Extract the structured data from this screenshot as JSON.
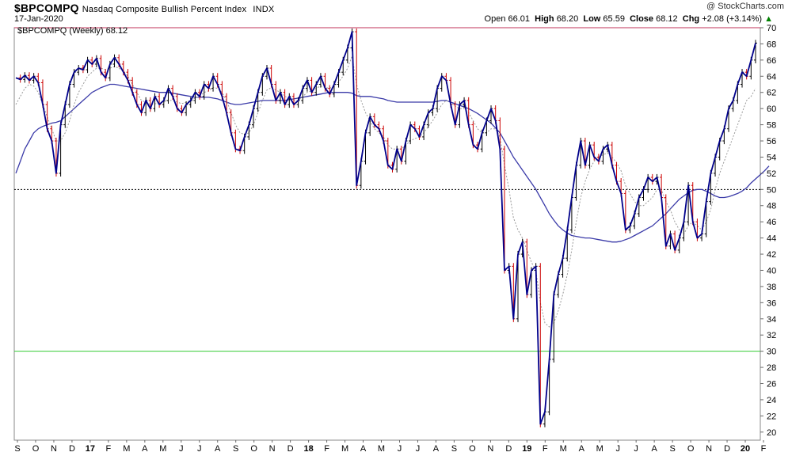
{
  "header": {
    "symbol": "$BPCOMPQ",
    "description": "Nasdaq Composite Bullish Percent Index",
    "exchange": "INDX",
    "date": "17-Jan-2020",
    "watermark": "@ StockCharts.com",
    "open_label": "Open",
    "open": "66.01",
    "high_label": "High",
    "high": "68.20",
    "low_label": "Low",
    "low": "65.59",
    "close_label": "Close",
    "close": "68.12",
    "chg_label": "Chg",
    "chg": "+2.08 (+3.14%)",
    "chg_arrow": "▲"
  },
  "legend": {
    "label": "$BPCOMPQ (Weekly) 68.12"
  },
  "colors": {
    "price_line": "#00008b",
    "up_bar": "#000000",
    "down_bar": "#cc0000",
    "ma_long": "#3a3aa8",
    "ma_short": "#9a9a9a",
    "ref_top": "#c0335a",
    "ref_mid": "#000000",
    "ref_low": "#33cc33"
  },
  "chart_data": {
    "type": "line",
    "ylim": [
      19,
      70
    ],
    "y_ticks": [
      20,
      22,
      24,
      26,
      28,
      30,
      32,
      34,
      36,
      38,
      40,
      42,
      44,
      46,
      48,
      50,
      52,
      54,
      56,
      58,
      60,
      62,
      64,
      66,
      68,
      70
    ],
    "x_labels": [
      "S",
      "O",
      "N",
      "D",
      "17",
      "F",
      "M",
      "A",
      "M",
      "J",
      "J",
      "A",
      "S",
      "O",
      "N",
      "D",
      "18",
      "F",
      "M",
      "A",
      "M",
      "J",
      "J",
      "A",
      "S",
      "O",
      "N",
      "D",
      "19",
      "F",
      "M",
      "A",
      "M",
      "J",
      "J",
      "A",
      "S",
      "O",
      "N",
      "D",
      "20",
      "F"
    ],
    "reference_lines": [
      70,
      50,
      30
    ],
    "series": [
      {
        "values": [
          63.8,
          63.6,
          64.1,
          63.5,
          64.0,
          63.2,
          60.5,
          57.5,
          56.0,
          52.0,
          58.0,
          60.5,
          63.0,
          64.5,
          65.0,
          64.8,
          66.0,
          65.5,
          66.2,
          64.5,
          63.8,
          65.5,
          66.3,
          65.5,
          64.5,
          63.5,
          62.0,
          60.5,
          59.5,
          61.0,
          60.0,
          61.5,
          60.5,
          61.0,
          62.5,
          61.5,
          60.0,
          59.5,
          60.5,
          61.0,
          62.0,
          61.5,
          63.0,
          62.5,
          64.0,
          63.0,
          61.5,
          59.5,
          57.0,
          55.0,
          54.8,
          56.5,
          58.0,
          60.0,
          62.0,
          64.0,
          65.0,
          63.0,
          61.0,
          62.0,
          60.5,
          61.5,
          60.5,
          61.0,
          62.5,
          63.5,
          62.0,
          63.0,
          64.0,
          62.5,
          61.8,
          63.0,
          64.5,
          66.0,
          67.5,
          69.5,
          50.5,
          53.5,
          57.0,
          59.0,
          58.0,
          57.5,
          56.0,
          53.0,
          52.5,
          55.0,
          53.5,
          56.0,
          58.0,
          57.5,
          56.5,
          58.0,
          59.5,
          60.0,
          62.5,
          64.0,
          63.5,
          60.5,
          58.0,
          60.5,
          61.0,
          58.0,
          55.5,
          55.0,
          57.0,
          58.5,
          60.0,
          58.5,
          55.0,
          40.0,
          40.5,
          34.0,
          42.0,
          43.5,
          37.0,
          40.0,
          40.5,
          21.0,
          22.5,
          29.0,
          37.0,
          39.5,
          41.5,
          45.0,
          49.0,
          53.0,
          56.0,
          53.0,
          55.5,
          54.0,
          53.5,
          55.0,
          55.5,
          53.0,
          51.0,
          49.5,
          45.0,
          45.5,
          47.0,
          49.0,
          50.0,
          51.5,
          51.0,
          51.5,
          49.0,
          43.0,
          44.5,
          42.5,
          44.0,
          46.0,
          50.5,
          46.0,
          44.0,
          44.5,
          48.5,
          52.0,
          54.0,
          56.0,
          57.5,
          60.0,
          61.0,
          63.0,
          64.5,
          64.0,
          66.0,
          68.1
        ]
      },
      {
        "values": [
          52.0,
          53.5,
          55.0,
          56.0,
          57.0,
          57.5,
          57.8,
          58.0,
          58.2,
          58.3,
          58.5,
          59.0,
          59.5,
          60.0,
          60.5,
          61.0,
          61.5,
          62.0,
          62.3,
          62.6,
          62.8,
          63.0,
          63.0,
          62.9,
          62.8,
          62.7,
          62.6,
          62.5,
          62.4,
          62.3,
          62.2,
          62.1,
          62.0,
          62.0,
          62.0,
          61.9,
          61.8,
          61.7,
          61.6,
          61.5,
          61.4,
          61.4,
          61.4,
          61.4,
          61.3,
          61.2,
          61.0,
          60.8,
          60.6,
          60.5,
          60.5,
          60.6,
          60.7,
          60.8,
          60.9,
          61.0,
          61.0,
          61.0,
          61.0,
          61.0,
          61.0,
          61.1,
          61.2,
          61.3,
          61.4,
          61.5,
          61.6,
          61.7,
          61.8,
          61.9,
          62.0,
          62.0,
          62.0,
          62.0,
          62.0,
          61.9,
          61.6,
          61.5,
          61.5,
          61.5,
          61.4,
          61.3,
          61.2,
          61.0,
          60.9,
          60.8,
          60.8,
          60.8,
          60.8,
          60.8,
          60.8,
          60.8,
          60.8,
          60.8,
          60.9,
          61.0,
          61.0,
          60.8,
          60.6,
          60.4,
          60.2,
          60.0,
          59.7,
          59.4,
          59.0,
          58.6,
          58.2,
          57.6,
          57.0,
          56.0,
          55.0,
          54.0,
          53.2,
          52.4,
          51.6,
          50.8,
          50.0,
          49.0,
          48.0,
          47.0,
          46.2,
          45.5,
          45.0,
          44.6,
          44.3,
          44.2,
          44.1,
          44.0,
          44.0,
          43.9,
          43.8,
          43.7,
          43.6,
          43.5,
          43.5,
          43.6,
          43.8,
          44.0,
          44.3,
          44.6,
          44.9,
          45.2,
          45.5,
          46.0,
          46.5,
          47.0,
          47.6,
          48.2,
          48.8,
          49.2,
          49.6,
          49.9,
          50.0,
          50.0,
          49.8,
          49.5,
          49.2,
          49.0,
          49.0,
          49.1,
          49.3,
          49.5,
          49.8,
          50.2,
          50.8,
          51.3,
          51.8,
          52.3,
          52.9
        ]
      },
      {
        "values": [
          60.5,
          61.5,
          62.5,
          63.0,
          62.8,
          62.0,
          60.5,
          59.0,
          57.5,
          56.0,
          56.0,
          57.0,
          58.5,
          60.5,
          62.0,
          63.0,
          64.0,
          64.5,
          65.0,
          65.0,
          64.8,
          65.0,
          65.2,
          65.0,
          64.6,
          64.0,
          63.0,
          62.0,
          61.0,
          60.8,
          60.5,
          60.6,
          60.6,
          60.8,
          61.0,
          61.0,
          60.8,
          60.6,
          60.8,
          61.0,
          61.3,
          61.5,
          62.0,
          62.2,
          62.6,
          62.5,
          62.0,
          61.0,
          59.5,
          58.0,
          57.0,
          56.8,
          57.0,
          58.0,
          59.5,
          61.0,
          62.3,
          62.6,
          62.3,
          62.0,
          61.5,
          61.3,
          61.0,
          61.0,
          61.5,
          62.0,
          62.2,
          62.5,
          62.8,
          62.6,
          62.5,
          62.8,
          63.3,
          64.0,
          65.0,
          66.5,
          63.0,
          61.0,
          59.5,
          58.5,
          57.5,
          57.0,
          56.5,
          55.5,
          55.0,
          55.0,
          55.0,
          55.5,
          56.0,
          56.3,
          56.5,
          57.0,
          57.8,
          58.5,
          59.5,
          60.5,
          61.0,
          60.8,
          60.3,
          60.0,
          60.0,
          59.5,
          58.5,
          57.5,
          57.0,
          57.0,
          57.5,
          57.5,
          56.5,
          53.0,
          50.0,
          46.5,
          45.0,
          44.0,
          42.5,
          41.0,
          40.0,
          36.0,
          33.5,
          33.0,
          33.5,
          35.0,
          37.0,
          39.5,
          42.5,
          46.0,
          49.0,
          51.0,
          52.5,
          53.5,
          54.0,
          54.3,
          54.5,
          54.0,
          53.3,
          52.3,
          50.5,
          49.5,
          48.5,
          48.0,
          48.0,
          48.5,
          49.0,
          50.0,
          50.0,
          48.5,
          47.5,
          46.0,
          45.0,
          44.5,
          45.5,
          46.0,
          45.5,
          45.0,
          46.0,
          47.5,
          50.0,
          52.0,
          53.5,
          55.0,
          56.5,
          58.0,
          59.5,
          61.0,
          61.5,
          62.5
        ]
      }
    ]
  }
}
